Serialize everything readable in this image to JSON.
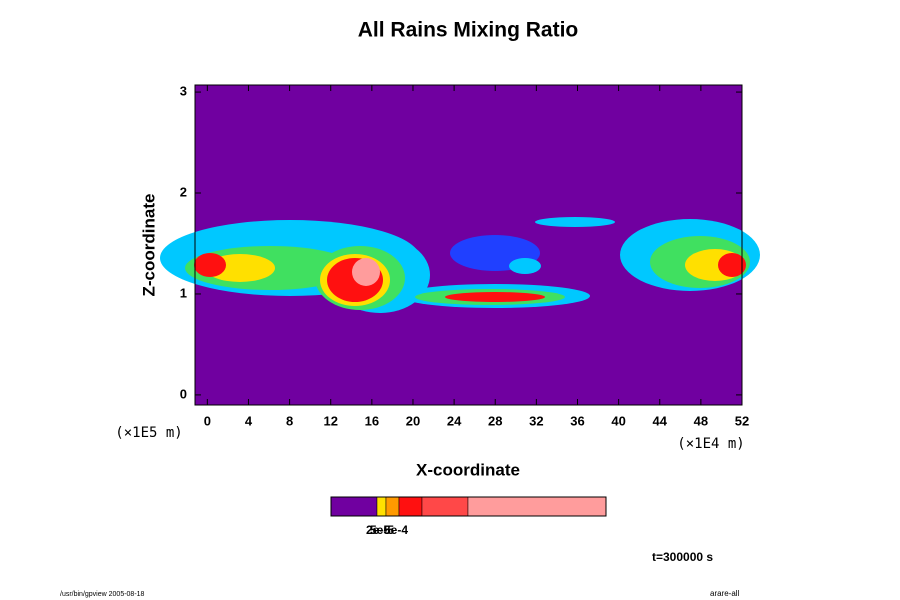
{
  "chart_data": {
    "type": "contour",
    "title": "All Rains Mixing Ratio",
    "xlabel": "X-coordinate",
    "ylabel": "Z-coordinate",
    "xunit": "(×1E4 m)",
    "yunit": "(×1E5 m)",
    "xlim": [
      -1.2,
      52
    ],
    "ylim": [
      -0.1,
      3.07
    ],
    "xticks": [
      0,
      4,
      8,
      12,
      16,
      20,
      24,
      28,
      32,
      36,
      40,
      44,
      48,
      52
    ],
    "yticks": [
      0,
      1,
      2,
      3
    ],
    "background_color": "#7000a0",
    "colorbar": {
      "colors": [
        "#7000a0",
        "#ffe000",
        "#ff9a00",
        "#ff1010",
        "#ff4848",
        "#ff9c9c"
      ],
      "labels": [
        "2e-5",
        "5e-5",
        "5e-4"
      ]
    },
    "time_label": "t=300000 s",
    "footer_left": "/usr/bin/gpview 2005-08-18",
    "footer_right": "arare-all"
  }
}
